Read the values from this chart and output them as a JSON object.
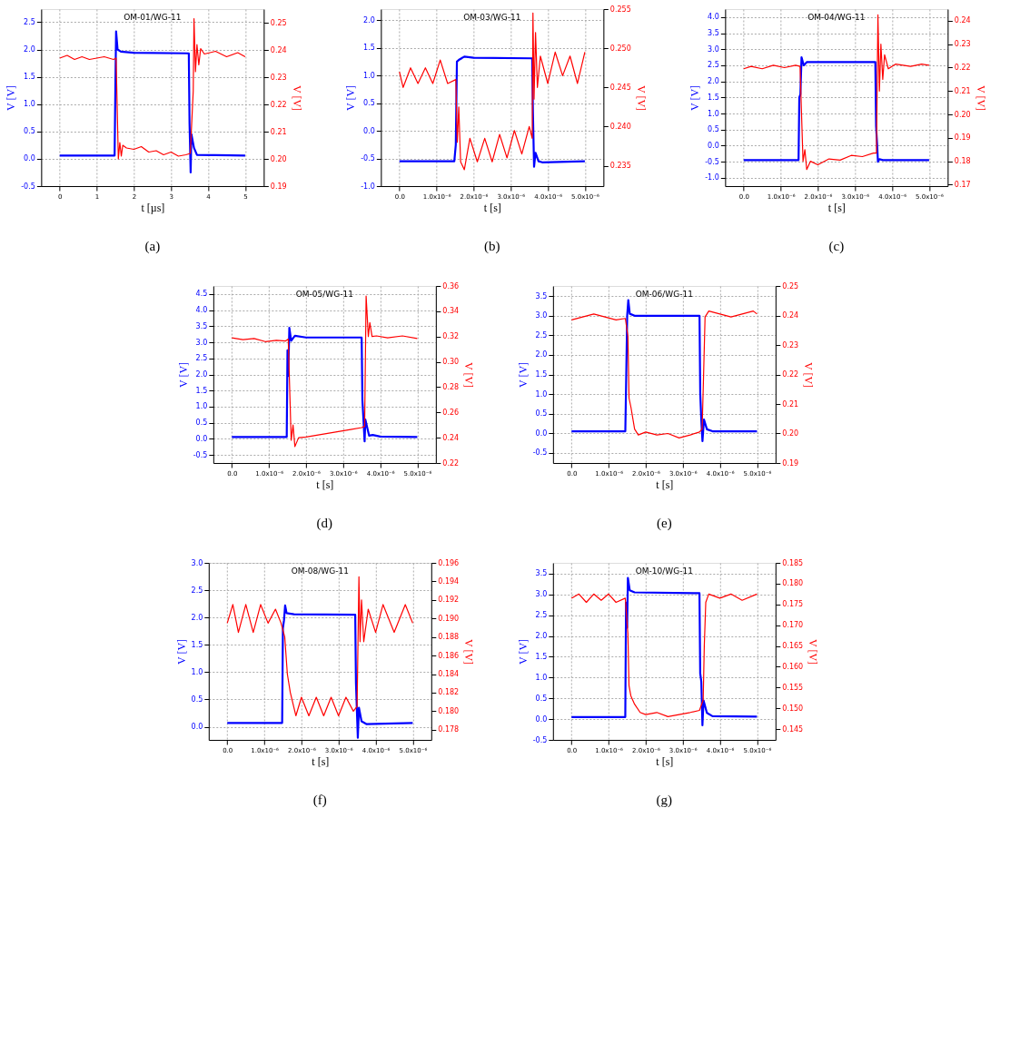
{
  "chart_data": [
    {
      "type": "line",
      "title": "OM-01/WG-11",
      "annotations": [
        "(a)"
      ],
      "xlabel": "t [µs]",
      "ylabel": "V [V]",
      "y2label": "V [V]",
      "grid": true,
      "xlim": [
        -0.5,
        5.5
      ],
      "xticks": [
        0,
        1,
        2,
        3,
        4,
        5
      ],
      "ylim": [
        -0.5,
        2.74
      ],
      "yticks": [
        -0.5,
        {
          "value": 0,
          "label": "0.0"
        },
        0.5,
        {
          "value": 1,
          "label": "1.0"
        },
        1.5,
        {
          "value": 2,
          "label": "2.0"
        },
        2.5
      ],
      "y2lim": [
        0.19,
        0.255
      ],
      "y2ticks": [
        0.19,
        {
          "value": 0.2,
          "label": "0.20"
        },
        0.21,
        0.22,
        0.23,
        0.24,
        0.25
      ],
      "series": [
        {
          "color": "#0000ff",
          "x": [
            0,
            1.48,
            1.5,
            1.52,
            1.56,
            1.65,
            2,
            3.48,
            3.5,
            3.53,
            3.55,
            3.62,
            3.7,
            5
          ],
          "values": [
            0.06,
            0.06,
            1.3,
            2.33,
            2.0,
            1.96,
            1.94,
            1.93,
            0.65,
            -0.25,
            0.45,
            0.2,
            0.07,
            0.06
          ]
        },
        {
          "color": "#ff0000",
          "axis": "y2",
          "x": [
            0,
            0.2,
            0.4,
            0.6,
            0.8,
            1.0,
            1.2,
            1.45,
            1.52,
            1.58,
            1.62,
            1.66,
            1.7,
            1.8,
            2.0,
            2.2,
            2.4,
            2.6,
            2.8,
            3.0,
            3.2,
            3.4,
            3.52,
            3.6,
            3.62,
            3.66,
            3.7,
            3.75,
            3.8,
            3.9,
            4.2,
            4.5,
            4.8,
            5
          ],
          "values": [
            0.237,
            0.238,
            0.2365,
            0.2375,
            0.2365,
            0.237,
            0.2375,
            0.2365,
            0.237,
            0.2,
            0.206,
            0.201,
            0.205,
            0.204,
            0.2035,
            0.2045,
            0.2025,
            0.203,
            0.2015,
            0.2025,
            0.201,
            0.2015,
            0.202,
            0.225,
            0.2515,
            0.232,
            0.242,
            0.2345,
            0.2405,
            0.2385,
            0.2395,
            0.2375,
            0.239,
            0.2375
          ]
        }
      ]
    },
    {
      "type": "line",
      "title": "OM-03/WG-11",
      "annotations": [
        "(b)"
      ],
      "xlabel": "t [s]",
      "ylabel": "V [V]",
      "y2label": "V [V]",
      "grid": true,
      "xlim": [
        -5e-07,
        5.5e-06
      ],
      "xticks": [
        {
          "value": 0,
          "label": "0.0"
        },
        {
          "value": 1e-06,
          "label": "1.0x10⁻⁶"
        },
        {
          "value": 2e-06,
          "label": "2.0x10⁻⁶"
        },
        {
          "value": 3e-06,
          "label": "3.0x10⁻⁶"
        },
        {
          "value": 4e-06,
          "label": "4.0x10⁻⁶"
        },
        {
          "value": 5e-06,
          "label": "5.0x10⁻⁶"
        }
      ],
      "ylim": [
        -1.0,
        2.2
      ],
      "yticks": [
        {
          "value": -1,
          "label": "-1.0"
        },
        -0.5,
        {
          "value": 0,
          "label": "0.0"
        },
        0.5,
        {
          "value": 1,
          "label": "1.0"
        },
        1.5,
        {
          "value": 2,
          "label": "2.0"
        }
      ],
      "y2lim": [
        0.2324,
        0.255
      ],
      "y2ticks": [
        0.235,
        {
          "value": 0.24,
          "label": "0.240"
        },
        0.245,
        {
          "value": 0.25,
          "label": "0.250"
        },
        0.255
      ],
      "series": [
        {
          "color": "#0000ff",
          "x": [
            0,
            1.48e-06,
            1.52e-06,
            1.55e-06,
            1.6e-06,
            1.75e-06,
            2e-06,
            3.58e-06,
            3.6e-06,
            3.63e-06,
            3.67e-06,
            3.75e-06,
            3.85e-06,
            5e-06
          ],
          "values": [
            -0.55,
            -0.55,
            -0.25,
            1.25,
            1.28,
            1.34,
            1.32,
            1.31,
            0.32,
            -0.65,
            -0.4,
            -0.55,
            -0.57,
            -0.55
          ]
        },
        {
          "color": "#ff0000",
          "axis": "y2",
          "x": [
            0,
            1e-07,
            3e-07,
            5e-07,
            7e-07,
            9e-07,
            1.1e-06,
            1.3e-06,
            1.52e-06,
            1.56e-06,
            1.6e-06,
            1.65e-06,
            1.75e-06,
            1.9e-06,
            2.1e-06,
            2.3e-06,
            2.5e-06,
            2.7e-06,
            2.9e-06,
            3.1e-06,
            3.3e-06,
            3.5e-06,
            3.58e-06,
            3.6e-06,
            3.63e-06,
            3.67e-06,
            3.72e-06,
            3.8e-06,
            4e-06,
            4.2e-06,
            4.4e-06,
            4.6e-06,
            4.8e-06,
            5e-06
          ],
          "values": [
            0.247,
            0.245,
            0.2475,
            0.2455,
            0.2475,
            0.2455,
            0.2485,
            0.2455,
            0.246,
            0.238,
            0.2425,
            0.2355,
            0.2345,
            0.2385,
            0.2355,
            0.2385,
            0.2355,
            0.239,
            0.236,
            0.2395,
            0.2365,
            0.24,
            0.2385,
            0.2545,
            0.2435,
            0.252,
            0.245,
            0.249,
            0.2455,
            0.2495,
            0.2465,
            0.249,
            0.2455,
            0.2495
          ]
        }
      ]
    },
    {
      "type": "line",
      "title": "OM-04/WG-11",
      "annotations": [
        "(c)"
      ],
      "xlabel": "t [s]",
      "ylabel": "V [V]",
      "y2label": "V [V]",
      "grid": true,
      "xlim": [
        -5e-07,
        5.5e-06
      ],
      "xticks": [
        {
          "value": 0,
          "label": "0.0"
        },
        {
          "value": 1e-06,
          "label": "1.0x10⁻⁶"
        },
        {
          "value": 2e-06,
          "label": "2.0x10⁻⁶"
        },
        {
          "value": 3e-06,
          "label": "3.0x10⁻⁶"
        },
        {
          "value": 4e-06,
          "label": "4.0x10⁻⁶"
        },
        {
          "value": 5e-06,
          "label": "5.0x10⁻⁶"
        }
      ],
      "ylim": [
        -1.26,
        4.25
      ],
      "yticks": [
        {
          "value": -1,
          "label": "-1.0"
        },
        -0.5,
        {
          "value": 0,
          "label": "0.0"
        },
        0.5,
        {
          "value": 1,
          "label": "1.0"
        },
        1.5,
        {
          "value": 2,
          "label": "2.0"
        },
        2.5,
        {
          "value": 3,
          "label": "3.0"
        },
        3.5,
        {
          "value": 4,
          "label": "4.0"
        }
      ],
      "y2lim": [
        0.1694,
        0.245
      ],
      "y2ticks": [
        0.17,
        0.18,
        0.19,
        {
          "value": 0.2,
          "label": "0.20"
        },
        0.21,
        0.22,
        0.23,
        0.24
      ],
      "series": [
        {
          "color": "#0000ff",
          "x": [
            0,
            1.48e-06,
            1.5e-06,
            1.53e-06,
            1.56e-06,
            1.62e-06,
            1.7e-06,
            3.55e-06,
            3.57e-06,
            3.6e-06,
            3.62e-06,
            3.66e-06,
            3.75e-06,
            5e-06
          ],
          "values": [
            -0.45,
            -0.45,
            1.5,
            1.6,
            2.75,
            2.5,
            2.6,
            2.6,
            0.6,
            0.0,
            -0.5,
            -0.42,
            -0.45,
            -0.45
          ]
        },
        {
          "color": "#ff0000",
          "axis": "y2",
          "x": [
            0,
            2e-07,
            5e-07,
            8e-07,
            1.1e-06,
            1.4e-06,
            1.52e-06,
            1.6e-06,
            1.65e-06,
            1.7e-06,
            1.8e-06,
            2e-06,
            2.3e-06,
            2.6e-06,
            2.9e-06,
            3.2e-06,
            3.5e-06,
            3.58e-06,
            3.62e-06,
            3.66e-06,
            3.7e-06,
            3.75e-06,
            3.8e-06,
            3.9e-06,
            4.1e-06,
            4.5e-06,
            4.8e-06,
            5e-06
          ],
          "values": [
            0.2195,
            0.2205,
            0.2195,
            0.221,
            0.22,
            0.221,
            0.2205,
            0.18,
            0.185,
            0.1765,
            0.18,
            0.1785,
            0.181,
            0.1805,
            0.1825,
            0.182,
            0.1835,
            0.1835,
            0.2425,
            0.21,
            0.23,
            0.215,
            0.2255,
            0.2195,
            0.2215,
            0.2205,
            0.2215,
            0.221
          ]
        }
      ]
    },
    {
      "type": "line",
      "title": "OM-05/WG-11",
      "annotations": [
        "(d)"
      ],
      "xlabel": "t [s]",
      "ylabel": "V [V]",
      "y2label": "V [V]",
      "grid": true,
      "xlim": [
        -5e-07,
        5.5e-06
      ],
      "xticks": [
        {
          "value": 0,
          "label": "0.0"
        },
        {
          "value": 1e-06,
          "label": "1.0x10⁻⁶"
        },
        {
          "value": 2e-06,
          "label": "2.0x10⁻⁶"
        },
        {
          "value": 3e-06,
          "label": "3.0x10⁻⁶"
        },
        {
          "value": 4e-06,
          "label": "4.0x10⁻⁶"
        },
        {
          "value": 5e-06,
          "label": "5.0x10⁻⁶"
        }
      ],
      "ylim": [
        -0.75,
        4.75
      ],
      "yticks": [
        -0.5,
        {
          "value": 0,
          "label": "0.0"
        },
        0.5,
        {
          "value": 1,
          "label": "1.0"
        },
        1.5,
        {
          "value": 2,
          "label": "2.0"
        },
        2.5,
        {
          "value": 3,
          "label": "3.0"
        },
        3.5,
        {
          "value": 4,
          "label": "4.0"
        },
        4.5
      ],
      "y2lim": [
        0.22,
        0.36
      ],
      "y2ticks": [
        0.22,
        0.24,
        0.26,
        0.28,
        {
          "value": 0.3,
          "label": "0.30"
        },
        0.32,
        0.34,
        0.36
      ],
      "series": [
        {
          "color": "#0000ff",
          "x": [
            0,
            1.48e-06,
            1.5e-06,
            1.52e-06,
            1.55e-06,
            1.6e-06,
            1.7e-06,
            2e-06,
            3.5e-06,
            3.52e-06,
            3.58e-06,
            3.6e-06,
            3.7e-06,
            3.8e-06,
            4e-06,
            5e-06
          ],
          "values": [
            0.06,
            0.06,
            2.75,
            1.95,
            3.45,
            3.05,
            3.2,
            3.15,
            3.15,
            1.2,
            -0.08,
            0.6,
            0.1,
            0.12,
            0.07,
            0.06
          ]
        },
        {
          "color": "#ff0000",
          "axis": "y2",
          "x": [
            0,
            3e-07,
            6e-07,
            9e-07,
            1.2e-06,
            1.45e-06,
            1.52e-06,
            1.6e-06,
            1.65e-06,
            1.7e-06,
            1.8e-06,
            2e-06,
            2.4e-06,
            2.8e-06,
            3.2e-06,
            3.5e-06,
            3.58e-06,
            3.62e-06,
            3.68e-06,
            3.72e-06,
            3.78e-06,
            3.9e-06,
            4.2e-06,
            4.6e-06,
            5e-06
          ],
          "values": [
            0.319,
            0.3175,
            0.3185,
            0.316,
            0.317,
            0.3165,
            0.318,
            0.238,
            0.25,
            0.233,
            0.24,
            0.2405,
            0.2425,
            0.2445,
            0.2465,
            0.248,
            0.249,
            0.352,
            0.32,
            0.331,
            0.32,
            0.3205,
            0.319,
            0.3205,
            0.3185
          ]
        }
      ]
    },
    {
      "type": "line",
      "title": "OM-06/WG-11",
      "annotations": [
        "(e)"
      ],
      "xlabel": "t [s]",
      "ylabel": "V [V]",
      "y2label": "V [V]",
      "grid": true,
      "xlim": [
        -5e-07,
        5.5e-06
      ],
      "xticks": [
        {
          "value": 0,
          "label": "0.0"
        },
        {
          "value": 1e-06,
          "label": "1.0x10⁻⁶"
        },
        {
          "value": 2e-06,
          "label": "2.0x10⁻⁶"
        },
        {
          "value": 3e-06,
          "label": "3.0x10⁻⁶"
        },
        {
          "value": 4e-06,
          "label": "4.0x10⁻⁶"
        },
        {
          "value": 5e-06,
          "label": "5.0x10⁻⁶"
        }
      ],
      "ylim": [
        -0.76,
        3.76
      ],
      "yticks": [
        -0.5,
        {
          "value": 0,
          "label": "0.0"
        },
        0.5,
        {
          "value": 1,
          "label": "1.0"
        },
        1.5,
        {
          "value": 2,
          "label": "2.0"
        },
        2.5,
        {
          "value": 3,
          "label": "3.0"
        },
        3.5
      ],
      "y2lim": [
        0.19,
        0.25
      ],
      "y2ticks": [
        0.19,
        {
          "value": 0.2,
          "label": "0.20"
        },
        0.21,
        0.22,
        0.23,
        0.24,
        0.25
      ],
      "series": [
        {
          "color": "#0000ff",
          "x": [
            0,
            1.45e-06,
            1.47e-06,
            1.5e-06,
            1.53e-06,
            1.57e-06,
            1.7e-06,
            3.45e-06,
            3.47e-06,
            3.5e-06,
            3.53e-06,
            3.57e-06,
            3.65e-06,
            3.8e-06,
            5e-06
          ],
          "values": [
            0.05,
            0.05,
            1.2,
            3.0,
            3.4,
            3.05,
            3.0,
            3.0,
            1.0,
            0.3,
            -0.2,
            0.35,
            0.1,
            0.05,
            0.05
          ]
        },
        {
          "color": "#ff0000",
          "axis": "y2",
          "x": [
            0,
            3e-07,
            6e-07,
            9e-07,
            1.2e-06,
            1.45e-06,
            1.52e-06,
            1.55e-06,
            1.6e-06,
            1.7e-06,
            1.8e-06,
            2e-06,
            2.3e-06,
            2.6e-06,
            2.9e-06,
            3.2e-06,
            3.45e-06,
            3.52e-06,
            3.55e-06,
            3.6e-06,
            3.7e-06,
            4e-06,
            4.3e-06,
            4.6e-06,
            4.9e-06,
            5e-06
          ],
          "values": [
            0.2385,
            0.2395,
            0.2405,
            0.2395,
            0.2385,
            0.239,
            0.233,
            0.212,
            0.209,
            0.2015,
            0.1995,
            0.2005,
            0.1995,
            0.2,
            0.1985,
            0.1995,
            0.2005,
            0.2015,
            0.215,
            0.2395,
            0.2415,
            0.2405,
            0.2395,
            0.2405,
            0.2415,
            0.2405
          ]
        }
      ]
    },
    {
      "type": "line",
      "title": "OM-08/WG-11",
      "annotations": [
        "(f)"
      ],
      "xlabel": "t [s]",
      "ylabel": "V [V]",
      "y2label": "V [V]",
      "grid": true,
      "xlim": [
        -5e-07,
        5.5e-06
      ],
      "xticks": [
        {
          "value": 0,
          "label": "0.0"
        },
        {
          "value": 1e-06,
          "label": "1.0x10⁻⁶"
        },
        {
          "value": 2e-06,
          "label": "2.0x10⁻⁶"
        },
        {
          "value": 3e-06,
          "label": "3.0x10⁻⁶"
        },
        {
          "value": 4e-06,
          "label": "4.0x10⁻⁶"
        },
        {
          "value": 5e-06,
          "label": "5.0x10⁻⁶"
        }
      ],
      "ylim": [
        -0.24,
        3.0
      ],
      "yticks": [
        {
          "value": 0,
          "label": "0.0"
        },
        0.5,
        {
          "value": 1,
          "label": "1.0"
        },
        1.5,
        {
          "value": 2,
          "label": "2.0"
        },
        2.5,
        {
          "value": 3,
          "label": "3.0"
        }
      ],
      "y2lim": [
        0.1769,
        0.196
      ],
      "y2ticks": [
        0.178,
        {
          "value": 0.18,
          "label": "0.180"
        },
        0.182,
        0.184,
        0.186,
        0.188,
        {
          "value": 0.19,
          "label": "0.190"
        },
        0.192,
        0.194,
        0.196
      ],
      "series": [
        {
          "color": "#0000ff",
          "x": [
            0,
            1.48e-06,
            1.5e-06,
            1.53e-06,
            1.56e-06,
            1.6e-06,
            1.8e-06,
            3.45e-06,
            3.47e-06,
            3.52e-06,
            3.55e-06,
            3.62e-06,
            3.75e-06,
            5e-06
          ],
          "values": [
            0.07,
            0.07,
            1.8,
            1.95,
            2.22,
            2.08,
            2.06,
            2.05,
            0.8,
            -0.2,
            0.35,
            0.1,
            0.05,
            0.07
          ]
        },
        {
          "color": "#ff0000",
          "axis": "y2",
          "x": [
            0,
            1.5e-07,
            3e-07,
            5e-07,
            7e-07,
            9e-07,
            1.1e-06,
            1.3e-06,
            1.45e-06,
            1.55e-06,
            1.62e-06,
            1.7e-06,
            1.85e-06,
            2e-06,
            2.2e-06,
            2.4e-06,
            2.6e-06,
            2.8e-06,
            3e-06,
            3.2e-06,
            3.4e-06,
            3.5e-06,
            3.55e-06,
            3.58e-06,
            3.62e-06,
            3.68e-06,
            3.8e-06,
            4e-06,
            4.2e-06,
            4.5e-06,
            4.8e-06,
            5e-06
          ],
          "values": [
            0.1895,
            0.1915,
            0.1885,
            0.1915,
            0.1885,
            0.1915,
            0.1895,
            0.191,
            0.1895,
            0.188,
            0.184,
            0.182,
            0.1795,
            0.1815,
            0.1795,
            0.1815,
            0.1795,
            0.1815,
            0.1795,
            0.1815,
            0.18,
            0.1805,
            0.1945,
            0.1875,
            0.192,
            0.1875,
            0.191,
            0.1885,
            0.1915,
            0.1885,
            0.1915,
            0.1895
          ]
        }
      ]
    },
    {
      "type": "line",
      "title": "OM-10/WG-11",
      "annotations": [
        "(g)"
      ],
      "xlabel": "t [s]",
      "ylabel": "V [V]",
      "y2label": "V [V]",
      "grid": true,
      "xlim": [
        -5e-07,
        5.5e-06
      ],
      "xticks": [
        {
          "value": 0,
          "label": "0.0"
        },
        {
          "value": 1e-06,
          "label": "1.0x10⁻⁶"
        },
        {
          "value": 2e-06,
          "label": "2.0x10⁻⁶"
        },
        {
          "value": 3e-06,
          "label": "3.0x10⁻⁶"
        },
        {
          "value": 4e-06,
          "label": "4.0x10⁻⁶"
        },
        {
          "value": 5e-06,
          "label": "5.0x10⁻⁶"
        }
      ],
      "ylim": [
        -0.5,
        3.76
      ],
      "yticks": [
        -0.5,
        {
          "value": 0,
          "label": "0.0"
        },
        0.5,
        {
          "value": 1,
          "label": "1.0"
        },
        1.5,
        {
          "value": 2,
          "label": "2.0"
        },
        2.5,
        {
          "value": 3,
          "label": "3.0"
        },
        3.5
      ],
      "y2lim": [
        0.1424,
        0.185
      ],
      "y2ticks": [
        0.145,
        {
          "value": 0.15,
          "label": "0.150"
        },
        0.155,
        {
          "value": 0.16,
          "label": "0.160"
        },
        0.165,
        {
          "value": 0.17,
          "label": "0.170"
        },
        0.175,
        {
          "value": 0.18,
          "label": "0.180"
        },
        0.185
      ],
      "series": [
        {
          "color": "#0000ff",
          "x": [
            0,
            1.45e-06,
            1.47e-06,
            1.5e-06,
            1.52e-06,
            1.57e-06,
            1.7e-06,
            3.45e-06,
            3.47e-06,
            3.5e-06,
            3.53e-06,
            3.56e-06,
            3.65e-06,
            3.8e-06,
            5e-06
          ],
          "values": [
            0.05,
            0.05,
            2.8,
            2.2,
            3.4,
            3.1,
            3.05,
            3.03,
            1.1,
            0.9,
            -0.15,
            0.45,
            0.15,
            0.07,
            0.06
          ]
        },
        {
          "color": "#ff0000",
          "axis": "y2",
          "x": [
            0,
            2e-07,
            4e-07,
            6e-07,
            8e-07,
            1e-06,
            1.2e-06,
            1.45e-06,
            1.52e-06,
            1.55e-06,
            1.6e-06,
            1.7e-06,
            1.85e-06,
            2e-06,
            2.3e-06,
            2.6e-06,
            2.9e-06,
            3.2e-06,
            3.45e-06,
            3.55e-06,
            3.58e-06,
            3.62e-06,
            3.7e-06,
            4e-06,
            4.3e-06,
            4.6e-06,
            5e-06
          ],
          "values": [
            0.1765,
            0.1775,
            0.1755,
            0.1775,
            0.176,
            0.1775,
            0.1755,
            0.1765,
            0.168,
            0.1555,
            0.153,
            0.151,
            0.149,
            0.1485,
            0.149,
            0.148,
            0.1485,
            0.149,
            0.1495,
            0.152,
            0.165,
            0.1755,
            0.1775,
            0.1765,
            0.1775,
            0.176,
            0.1775
          ]
        }
      ]
    }
  ]
}
